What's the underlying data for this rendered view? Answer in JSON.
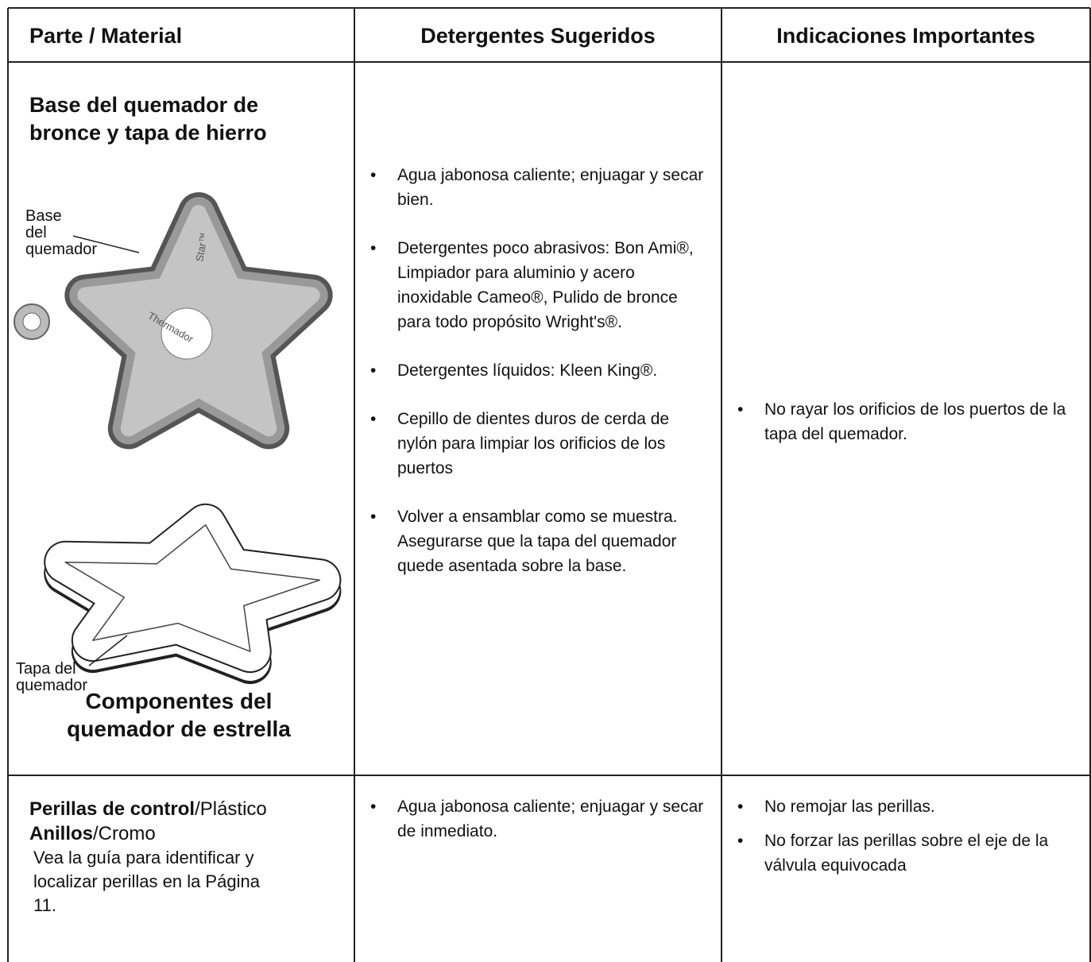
{
  "table": {
    "headers": [
      "Parte / Material",
      "Detergentes Sugeridos",
      "Indicaciones Importantes"
    ],
    "rows": [
      {
        "part": {
          "title": "Base del quemador de bronce y tapa de hierro",
          "base_label": [
            "Base",
            "del",
            "quemador"
          ],
          "cap_label": [
            "Tapa del",
            "quemador"
          ],
          "emboss": [
            "Thermador",
            "Star™"
          ],
          "caption": "Componentes del quemador de estrella"
        },
        "detergents": [
          "Agua jabonosa caliente; enjuagar y secar bien.",
          "Detergentes poco abrasivos: Bon Ami®, Limpiador para aluminio y acero inoxidable Cameo®, Pulido de bronce para todo propósito Wright's®.",
          "Detergentes líquidos: Kleen King®.",
          "Cepillo de dientes duros de cerda de nylón para limpiar los orificios de los puertos",
          "Volver a ensamblar como se muestra. Asegurarse que la tapa del quemador quede asentada sobre la base."
        ],
        "notes": [
          "No rayar los orificios de los puertos de la tapa del quemador."
        ]
      },
      {
        "part": {
          "knobs": "Perillas de control",
          "knobs_material": "/Plástico",
          "rings": "Anillos",
          "rings_material": "/Cromo",
          "note": "Vea la guía para identificar y localizar perillas en la Página 11."
        },
        "detergents": [
          "Agua jabonosa caliente; enjuagar y secar de inmediato."
        ],
        "notes": [
          "No remojar las perillas.",
          "No forzar las perillas sobre el eje de la válvula equivocada"
        ]
      }
    ]
  }
}
